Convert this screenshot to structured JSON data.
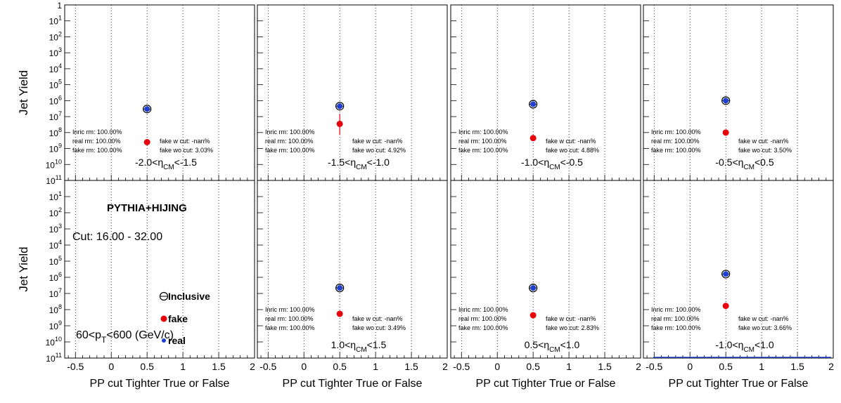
{
  "global": {
    "ylabel": "Jet Yield",
    "xlabel": "PP cut Tighter True or False",
    "x_ticks": [
      "-0.5",
      "0",
      "0.5",
      "1",
      "1.5",
      "2"
    ],
    "y_ticks": [
      "1",
      "10^-1",
      "10^-2",
      "10^-3",
      "10^-4",
      "10^-5",
      "10^-6",
      "10^-7",
      "10^-8",
      "10^-9",
      "10^-10",
      "10^-11"
    ],
    "colors": {
      "inclusive": "#000000",
      "fake": "#e8000b",
      "real": "#1f3fcf",
      "grid": "#000000"
    }
  },
  "annotations": {
    "generator": "PYTHIA+HIJING",
    "cut": "Cut: 16.00 - 32.00",
    "pt_range": {
      "pre": "60<p",
      "sub": "T",
      "post": "<600 (GeV/c)"
    },
    "legend": [
      "Inclusive",
      "fake",
      "real"
    ]
  },
  "chart_data": [
    {
      "type": "scatter",
      "panel": 1,
      "log_y": true,
      "xlim": [
        -0.65,
        2.0
      ],
      "ylim": [
        1e-11,
        1
      ],
      "eta_label": {
        "pre": "-2.0<η",
        "sub": "CM",
        "post": "<-1.5"
      },
      "stats_left": [
        "Inric rm: 100.00%",
        "real rm: 100.00%",
        "fake rm: 100.00%"
      ],
      "stats_right": [
        "fake w cut: -nan%",
        "fake wo cut: 3.03%"
      ],
      "series": [
        {
          "name": "Inclusive",
          "x": [
            0.5
          ],
          "y": [
            3e-07
          ]
        },
        {
          "name": "fake",
          "x": [
            0.5
          ],
          "y": [
            2.5e-09
          ]
        },
        {
          "name": "real",
          "x": [
            0.5
          ],
          "y": [
            3e-07
          ]
        }
      ]
    },
    {
      "type": "scatter",
      "panel": 2,
      "log_y": true,
      "xlim": [
        -0.65,
        2.0
      ],
      "ylim": [
        1e-11,
        1
      ],
      "eta_label": {
        "pre": "-1.5<η",
        "sub": "CM",
        "post": "<-1.0"
      },
      "stats_left": [
        "Inric rm: 100.00%",
        "real rm: 100.00%",
        "fake rm: 100.00%"
      ],
      "stats_right": [
        "fake w cut: -nan%",
        "fake wo cut: 4.92%"
      ],
      "series": [
        {
          "name": "Inclusive",
          "x": [
            0.5
          ],
          "y": [
            4.5e-07
          ]
        },
        {
          "name": "fake",
          "x": [
            0.5
          ],
          "y": [
            3.5e-08
          ],
          "err_low": [
            7e-09
          ],
          "err_high": [
            1.5e-07
          ]
        },
        {
          "name": "real",
          "x": [
            0.5
          ],
          "y": [
            4.5e-07
          ]
        }
      ]
    },
    {
      "type": "scatter",
      "panel": 3,
      "log_y": true,
      "xlim": [
        -0.65,
        2.0
      ],
      "ylim": [
        1e-11,
        1
      ],
      "eta_label": {
        "pre": "-1.0<η",
        "sub": "CM",
        "post": "<-0.5"
      },
      "stats_left": [
        "Inric rm: 100.00%",
        "real rm: 100.00%",
        "fake rm: 100.00%"
      ],
      "stats_right": [
        "fake w cut: -nan%",
        "fake wo cut: 4.88%"
      ],
      "series": [
        {
          "name": "Inclusive",
          "x": [
            0.5
          ],
          "y": [
            6e-07
          ]
        },
        {
          "name": "fake",
          "x": [
            0.5
          ],
          "y": [
            4.5e-09
          ]
        },
        {
          "name": "real",
          "x": [
            0.5
          ],
          "y": [
            6e-07
          ]
        }
      ]
    },
    {
      "type": "scatter",
      "panel": 4,
      "log_y": true,
      "xlim": [
        -0.65,
        2.0
      ],
      "ylim": [
        1e-11,
        1
      ],
      "eta_label": {
        "pre": "-0.5<η",
        "sub": "CM",
        "post": "<0.5"
      },
      "stats_left": [
        "Inric rm: 100.00%",
        "real rm: 100.00%",
        "fake rm: 100.00%"
      ],
      "stats_right": [
        "fake w cut: -nan%",
        "fake wo cut: 3.50%"
      ],
      "series": [
        {
          "name": "Inclusive",
          "x": [
            0.5
          ],
          "y": [
            1e-06
          ]
        },
        {
          "name": "fake",
          "x": [
            0.5
          ],
          "y": [
            1e-08
          ]
        },
        {
          "name": "real",
          "x": [
            0.5
          ],
          "y": [
            1e-06
          ]
        }
      ]
    },
    {
      "type": "scatter",
      "panel": 5,
      "log_y": true,
      "xlim": [
        -0.65,
        2.0
      ],
      "ylim": [
        1e-11,
        1
      ],
      "eta_label": null,
      "stats_left": [],
      "stats_right": [],
      "series": []
    },
    {
      "type": "scatter",
      "panel": 6,
      "log_y": true,
      "xlim": [
        -0.65,
        2.0
      ],
      "ylim": [
        1e-11,
        1
      ],
      "eta_label": {
        "pre": "1.0<η",
        "sub": "CM",
        "post": "<1.5"
      },
      "stats_left": [
        "Inric rm: 100.00%",
        "real rm: 100.00%",
        "fake rm: 100.00%"
      ],
      "stats_right": [
        "fake w cut: -nan%",
        "fake wo cut: 3.49%"
      ],
      "series": [
        {
          "name": "Inclusive",
          "x": [
            0.5
          ],
          "y": [
            2.2e-07
          ]
        },
        {
          "name": "fake",
          "x": [
            0.5
          ],
          "y": [
            5.5e-09
          ]
        },
        {
          "name": "real",
          "x": [
            0.5
          ],
          "y": [
            2.2e-07
          ]
        }
      ]
    },
    {
      "type": "scatter",
      "panel": 7,
      "log_y": true,
      "xlim": [
        -0.65,
        2.0
      ],
      "ylim": [
        1e-11,
        1
      ],
      "eta_label": {
        "pre": "0.5<η",
        "sub": "CM",
        "post": "<1.0"
      },
      "stats_left": [
        "Inric rm: 100.00%",
        "real rm: 100.00%",
        "fake rm: 100.00%"
      ],
      "stats_right": [
        "fake w cut: -nan%",
        "fake wo cut: 2.83%"
      ],
      "series": [
        {
          "name": "Inclusive",
          "x": [
            0.5
          ],
          "y": [
            2.2e-07
          ]
        },
        {
          "name": "fake",
          "x": [
            0.5
          ],
          "y": [
            4.5e-09
          ]
        },
        {
          "name": "real",
          "x": [
            0.5
          ],
          "y": [
            2.2e-07
          ]
        }
      ]
    },
    {
      "type": "scatter",
      "panel": 8,
      "log_y": true,
      "xlim": [
        -0.65,
        2.0
      ],
      "ylim": [
        1e-11,
        1
      ],
      "eta_label": {
        "pre": "-1.0<η",
        "sub": "CM",
        "post": "<1.0"
      },
      "stats_left": [
        "Inric rm: 100.00%",
        "real rm: 100.00%",
        "fake rm: 100.00%"
      ],
      "stats_right": [
        "fake w cut: -nan%",
        "fake wo cut: 3.66%"
      ],
      "series": [
        {
          "name": "Inclusive",
          "x": [
            0.5
          ],
          "y": [
            1.6e-06
          ]
        },
        {
          "name": "fake",
          "x": [
            0.5
          ],
          "y": [
            1.7e-08
          ]
        },
        {
          "name": "real",
          "x": [
            0.5
          ],
          "y": [
            1.6e-06
          ]
        }
      ]
    }
  ]
}
